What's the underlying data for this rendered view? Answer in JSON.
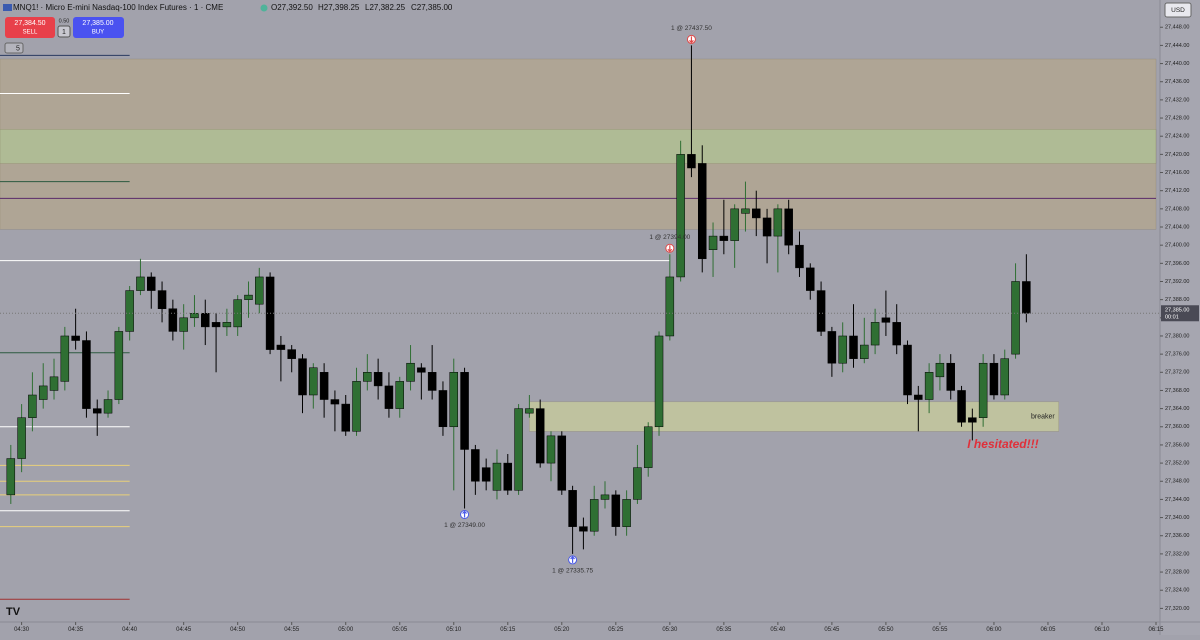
{
  "header": {
    "symbol": "MNQ1! · Micro E-mini Nasdaq-100 Index Futures · 1 · CME",
    "open": "O27,392.50",
    "high": "H27,398.25",
    "low": "L27,382.25",
    "close": "C27,385.00",
    "sell_price": "27,384.50",
    "sell": "SELL",
    "spread": "0.50",
    "quantity": "1",
    "buy_price": "27,385.00",
    "buy": "BUY",
    "interval_menu": "5",
    "currency": "USD"
  },
  "chart_data": {
    "type": "candlestick",
    "up_color": "#2f6f33",
    "down_color": "#000000",
    "background": "#a2a2ac",
    "x": [
      "04:29",
      "04:30",
      "04:31",
      "04:32",
      "04:33",
      "04:34",
      "04:35",
      "04:36",
      "04:37",
      "04:38",
      "04:39",
      "04:40",
      "04:41",
      "04:42",
      "04:43",
      "04:44",
      "04:45",
      "04:46",
      "04:47",
      "04:48",
      "04:49",
      "04:50",
      "04:51",
      "04:52",
      "04:53",
      "04:54",
      "04:55",
      "04:56",
      "04:57",
      "04:58",
      "04:59",
      "05:00",
      "05:01",
      "05:02",
      "05:03",
      "05:04",
      "05:05",
      "05:06",
      "05:07",
      "05:08",
      "05:09",
      "05:10",
      "05:11",
      "05:12",
      "05:13",
      "05:14",
      "05:15",
      "05:16",
      "05:17",
      "05:18",
      "05:19",
      "05:20",
      "05:21",
      "05:22",
      "05:23",
      "05:24",
      "05:25",
      "05:26",
      "05:27",
      "05:28",
      "05:29",
      "05:30",
      "05:31",
      "05:32",
      "05:33",
      "05:34",
      "05:35",
      "05:36",
      "05:37",
      "05:38",
      "05:39",
      "05:40",
      "05:41",
      "05:42",
      "05:43",
      "05:44",
      "05:45",
      "05:46",
      "05:47",
      "05:48",
      "05:49",
      "05:50",
      "05:51",
      "05:52",
      "05:53",
      "05:54",
      "05:55",
      "05:56",
      "05:57",
      "05:58",
      "05:59",
      "06:00",
      "06:01",
      "06:02",
      "06:03"
    ],
    "open": [
      27345,
      27353,
      27362,
      27366,
      27368,
      27370,
      27380,
      27379,
      27364,
      27363,
      27366,
      27381,
      27390,
      27393,
      27390,
      27386,
      27381,
      27384,
      27385,
      27383,
      27382,
      27382,
      27388,
      27387,
      27393,
      27378,
      27377,
      27375,
      27367,
      27372,
      27366,
      27365,
      27359,
      27370,
      27372,
      27369,
      27364,
      27370,
      27373,
      27372,
      27368,
      27360,
      27372,
      27355,
      27351,
      27346,
      27352,
      27346,
      27363,
      27364,
      27352,
      27358,
      27346,
      27338,
      27337,
      27344,
      27345,
      27338,
      27344,
      27351,
      27360,
      27380,
      27393,
      27420,
      27418,
      27399,
      27402,
      27401,
      27407,
      27408,
      27406,
      27402,
      27408,
      27400,
      27395,
      27390,
      27381,
      27374,
      27380,
      27375,
      27378,
      27384,
      27383,
      27378,
      27367,
      27366,
      27371,
      27374,
      27368,
      27362,
      27362,
      27374,
      27367,
      27376,
      27392
    ],
    "high": [
      27356,
      27365,
      27372,
      27374,
      27375,
      27382,
      27386,
      27381,
      27366,
      27368,
      27382,
      27391,
      27397,
      27394,
      27392,
      27388,
      27387,
      27389,
      27388,
      27385,
      27386,
      27389,
      27392,
      27395,
      27394,
      27380,
      27378,
      27376,
      27374,
      27374,
      27368,
      27367,
      27373,
      27376,
      27375,
      27372,
      27371,
      27378,
      27374,
      27378,
      27370,
      27375,
      27373,
      27356,
      27353,
      27355,
      27354,
      27365,
      27367,
      27366,
      27359,
      27359,
      27347,
      27340,
      27347,
      27348,
      27346,
      27346,
      27356,
      27361,
      27381,
      27398,
      27423,
      27444,
      27422,
      27405,
      27410,
      27409,
      27414,
      27412,
      27408,
      27409,
      27410,
      27403,
      27396,
      27392,
      27382,
      27383,
      27387,
      27384,
      27386,
      27390,
      27387,
      27379,
      27369,
      27374,
      27376,
      27376,
      27369,
      27364,
      27376,
      27376,
      27377,
      27396,
      27398
    ],
    "low": [
      27343,
      27350,
      27359,
      27364,
      27366,
      27368,
      27377,
      27362,
      27358,
      27362,
      27365,
      27379,
      27389,
      27386,
      27383,
      27379,
      27377,
      27382,
      27378,
      27372,
      27380,
      27380,
      27384,
      27385,
      27376,
      27370,
      27372,
      27363,
      27364,
      27362,
      27359,
      27358,
      27358,
      27368,
      27366,
      27362,
      27362,
      27368,
      27366,
      27366,
      27358,
      27346,
      27342,
      27345,
      27346,
      27344,
      27345,
      27345,
      27362,
      27351,
      27348,
      27345,
      27332,
      27333,
      27336,
      27342,
      27336,
      27336,
      27343,
      27349,
      27358,
      27379,
      27392,
      27415,
      27394,
      27393,
      27398,
      27395,
      27403,
      27402,
      27396,
      27394,
      27398,
      27393,
      27388,
      27380,
      27371,
      27372,
      27373,
      27374,
      27376,
      27380,
      27376,
      27365,
      27359,
      27363,
      27368,
      27366,
      27360,
      27357,
      27360,
      27366,
      27366,
      27375,
      27383
    ],
    "close": [
      27353,
      27362,
      27367,
      27369,
      27371,
      27380,
      27379,
      27364,
      27363,
      27366,
      27381,
      27390,
      27393,
      27390,
      27386,
      27381,
      27384,
      27385,
      27382,
      27382,
      27383,
      27388,
      27389,
      27393,
      27377,
      27377,
      27375,
      27367,
      27373,
      27366,
      27365,
      27359,
      27370,
      27372,
      27369,
      27364,
      27370,
      27374,
      27372,
      27368,
      27360,
      27372,
      27355,
      27348,
      27348,
      27352,
      27346,
      27364,
      27364,
      27352,
      27358,
      27346,
      27338,
      27337,
      27344,
      27345,
      27338,
      27344,
      27351,
      27360,
      27380,
      27393,
      27420,
      27417,
      27397,
      27402,
      27401,
      27408,
      27408,
      27406,
      27402,
      27408,
      27400,
      27395,
      27390,
      27381,
      27374,
      27380,
      27375,
      27378,
      27383,
      27383,
      27378,
      27367,
      27366,
      27372,
      27374,
      27368,
      27361,
      27361,
      27374,
      27367,
      27375,
      27392,
      27385
    ],
    "xlim": [
      "04:28",
      "06:15"
    ],
    "xticks": [
      "04:30",
      "04:35",
      "04:40",
      "04:45",
      "04:50",
      "04:55",
      "05:00",
      "05:05",
      "05:10",
      "05:15",
      "05:20",
      "05:25",
      "05:30",
      "05:35",
      "05:40",
      "05:45",
      "05:50",
      "05:55",
      "06:00",
      "06:05",
      "06:10",
      "06:15"
    ],
    "ylim": [
      27317,
      27454
    ],
    "yticks": [
      {
        "value": 27320,
        "label": "27,320.00"
      },
      {
        "value": 27324,
        "label": "27,324.00"
      },
      {
        "value": 27328,
        "label": "27,328.00"
      },
      {
        "value": 27332,
        "label": "27,332.00"
      },
      {
        "value": 27336,
        "label": "27,336.00"
      },
      {
        "value": 27340,
        "label": "27,340.00"
      },
      {
        "value": 27344,
        "label": "27,344.00"
      },
      {
        "value": 27348,
        "label": "27,348.00"
      },
      {
        "value": 27352,
        "label": "27,352.00"
      },
      {
        "value": 27356,
        "label": "27,356.00"
      },
      {
        "value": 27360,
        "label": "27,360.00"
      },
      {
        "value": 27364,
        "label": "27,364.00"
      },
      {
        "value": 27368,
        "label": "27,368.00"
      },
      {
        "value": 27372,
        "label": "27,372.00"
      },
      {
        "value": 27376,
        "label": "27,376.00"
      },
      {
        "value": 27380,
        "label": "27,380.00"
      },
      {
        "value": 27384,
        "label": "27,384.00"
      },
      {
        "value": 27388,
        "label": "27,388.00"
      },
      {
        "value": 27392,
        "label": "27,392.00"
      },
      {
        "value": 27396,
        "label": "27,396.00"
      },
      {
        "value": 27400,
        "label": "27,400.00"
      },
      {
        "value": 27404,
        "label": "27,404.00"
      },
      {
        "value": 27408,
        "label": "27,408.00"
      },
      {
        "value": 27412,
        "label": "27,412.00"
      },
      {
        "value": 27416,
        "label": "27,416.00"
      },
      {
        "value": 27420,
        "label": "27,420.00"
      },
      {
        "value": 27424,
        "label": "27,424.00"
      },
      {
        "value": 27428,
        "label": "27,428.00"
      },
      {
        "value": 27432,
        "label": "27,432.00"
      },
      {
        "value": 27436,
        "label": "27,436.00"
      },
      {
        "value": 27440,
        "label": "27,440.00"
      },
      {
        "value": 27444,
        "label": "27,444.00"
      },
      {
        "value": 27448,
        "label": "27,448.00"
      }
    ],
    "zones": [
      {
        "from": 27403.5,
        "to": 27441,
        "start": "04:28",
        "end": "06:15",
        "color": "rgba(185,168,132,0.55)"
      },
      {
        "from": 27418,
        "to": 27425.5,
        "start": "04:28",
        "end": "06:15",
        "color": "rgba(175,205,150,0.55)"
      },
      {
        "from": 27359,
        "to": 27365.5,
        "start": "05:17",
        "end": "06:06",
        "color": "rgba(215,220,150,0.55)",
        "label": "breaker"
      }
    ],
    "levels": [
      {
        "price": 27410.3,
        "start": "04:28",
        "end": "06:15",
        "color": "#5a2a6a"
      },
      {
        "price": 27396.6,
        "start": "04:28",
        "end": "05:30",
        "color": "#ffffff"
      },
      {
        "price": 27441.8,
        "start": "04:28",
        "end": "04:40",
        "color": "#2a3a60"
      },
      {
        "price": 27433.4,
        "start": "04:28",
        "end": "04:40",
        "color": "#ffffff"
      },
      {
        "price": 27414,
        "start": "04:28",
        "end": "04:40",
        "color": "#2c5a40"
      },
      {
        "price": 27376.3,
        "start": "04:28",
        "end": "04:40",
        "color": "#2c5a40"
      },
      {
        "price": 27360,
        "start": "04:28",
        "end": "04:40",
        "color": "#ffffff"
      },
      {
        "price": 27351.5,
        "start": "04:28",
        "end": "04:40",
        "color": "#e8d07a"
      },
      {
        "price": 27348,
        "start": "04:28",
        "end": "04:40",
        "color": "#e8d07a"
      },
      {
        "price": 27345,
        "start": "04:28",
        "end": "04:40",
        "color": "#e8d07a"
      },
      {
        "price": 27341.5,
        "start": "04:28",
        "end": "04:40",
        "color": "#ffffff"
      },
      {
        "price": 27338,
        "start": "04:28",
        "end": "04:40",
        "color": "#e8d07a"
      },
      {
        "price": 27322,
        "start": "04:28",
        "end": "04:40",
        "color": "#a03030"
      }
    ],
    "markers": [
      {
        "label": "1 @ 27437.50",
        "time": "05:32",
        "price": 27444,
        "direction": "down",
        "color": "#e04848"
      },
      {
        "label": "1 @ 27394.00",
        "time": "05:30",
        "price": 27398,
        "direction": "down",
        "color": "#e04848"
      },
      {
        "label": "1 @ 27349.00",
        "time": "05:11",
        "price": 27342,
        "direction": "up",
        "color": "#4a5ae8"
      },
      {
        "label": "1 @ 27335.75",
        "time": "05:21",
        "price": 27332,
        "direction": "up",
        "color": "#4a5ae8"
      }
    ],
    "annotation": {
      "text": "I hesitated!!!",
      "time": "06:00",
      "price": 27356,
      "color": "#e0303a"
    },
    "last_price": {
      "value": 27385,
      "label": "27,385.00",
      "countdown": "00:01"
    }
  }
}
